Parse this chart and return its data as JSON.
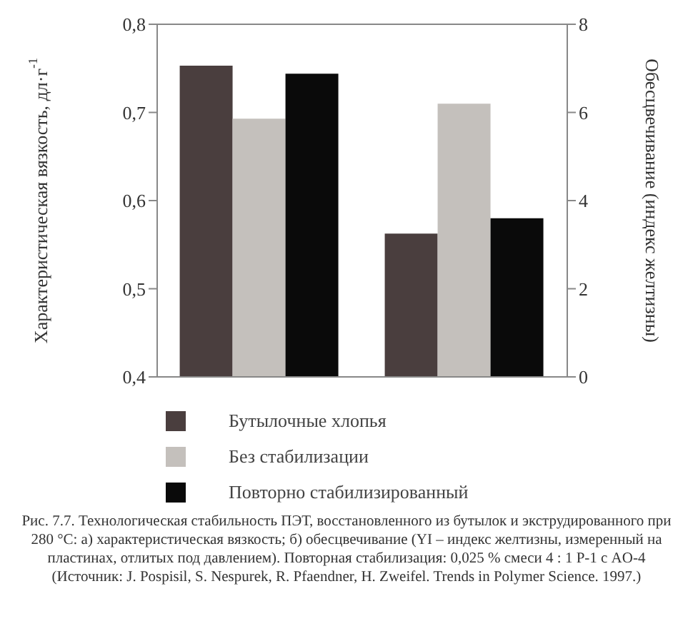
{
  "chart_data": {
    "type": "bar",
    "categories": [
      null,
      null
    ],
    "series": [
      {
        "name": "Бутылочные хлопья",
        "color": "#4a3e3e",
        "values": [
          0.753,
          null
        ]
      },
      {
        "name": "Без стабилизации",
        "color": "#c4c0bc",
        "values": [
          0.693,
          null
        ]
      },
      {
        "name": "Повторно стабилизированный",
        "color": "#0a0a0a",
        "values": [
          0.744,
          null
        ]
      },
      {
        "color": "#4a3e3e",
        "axis": "y2",
        "values": [
          null,
          3.25
        ]
      },
      {
        "color": "#c4c0bc",
        "axis": "y2",
        "values": [
          null,
          6.2
        ]
      },
      {
        "color": "#0a0a0a",
        "axis": "y2",
        "values": [
          null,
          3.6
        ]
      }
    ],
    "ylabel": "Характеристическая вязкость, дл·г$^{-1}$",
    "y2label": "Обесцвечивание (индекс желтизны)",
    "ylim": [
      0.4,
      0.8
    ],
    "yticks": [
      {
        "value": 0.4,
        "label": "0,4"
      },
      {
        "value": 0.5,
        "label": "0,5"
      },
      {
        "value": 0.6,
        "label": "0,6"
      },
      {
        "value": 0.7,
        "label": "0,7"
      },
      {
        "value": 0.8,
        "label": "0,8"
      }
    ],
    "y2lim": [
      0,
      8
    ],
    "y2ticks": [
      0,
      2,
      4,
      6,
      8
    ],
    "legend": "bottom",
    "grid": false,
    "annotations": [
      "Рис. 7.7. Технологическая стабильность ПЭТ, восстановленного из бутылок и экструдированного при 280 °С: а) характеристическая вязкость; б) обесцвечивание (YI – индекс желтизны, измеренный на пластинах, отлитых под давлением). Повторная стабилизация: 0,025 % смеси 4 : 1 P-1 с AO-4",
      "(Источник: J. Pospisil, S. Nespurek, R. Pfaendner, H. Zweifel. Trends in Polymer Science. 1997.)"
    ]
  }
}
